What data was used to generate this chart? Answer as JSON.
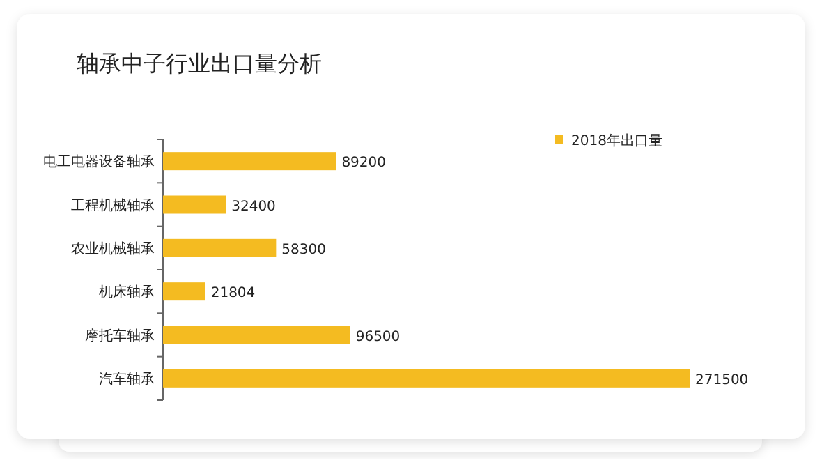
{
  "chart_data": {
    "type": "bar",
    "orientation": "horizontal",
    "title": "轴承中子行业出口量分析",
    "categories": [
      "电工电器设备轴承",
      "工程机械轴承",
      "农业机械轴承",
      "机床轴承",
      "摩托车轴承",
      "汽车轴承"
    ],
    "series": [
      {
        "name": "2018年出口量",
        "color": "#f4bb21",
        "values": [
          89200,
          32400,
          58300,
          21804,
          96500,
          271500
        ]
      }
    ],
    "data_labels": true,
    "legend": "top right"
  }
}
